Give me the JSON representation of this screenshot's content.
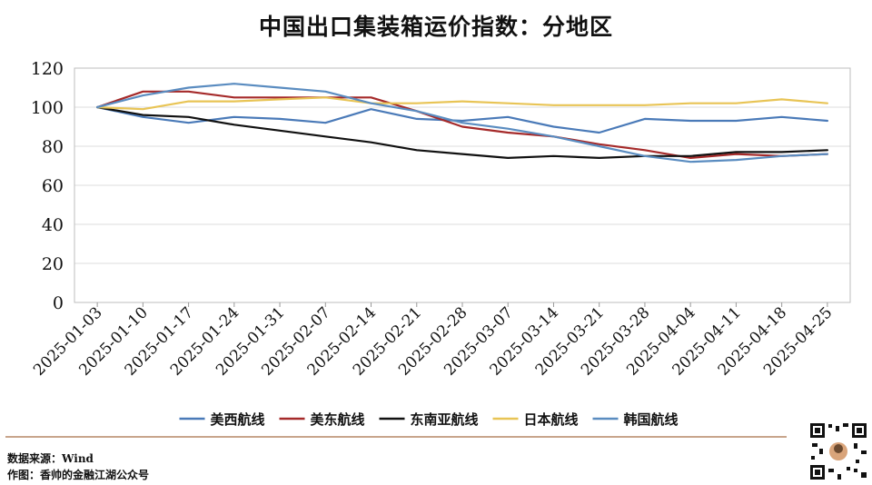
{
  "title": "中国出口集装箱运价指数：分地区",
  "footer": {
    "source": "数据来源：Wind",
    "author": "作图：香帅的金融江湖公众号"
  },
  "chart_data": {
    "type": "line",
    "title": "中国出口集装箱运价指数：分地区",
    "xlabel": "",
    "ylabel": "",
    "ylim": [
      0,
      120
    ],
    "yticks": [
      0,
      20,
      40,
      60,
      80,
      100,
      120
    ],
    "grid": true,
    "legend_position": "bottom",
    "x": [
      "2025-01-03",
      "2025-01-10",
      "2025-01-17",
      "2025-01-24",
      "2025-01-31",
      "2025-02-07",
      "2025-02-14",
      "2025-02-21",
      "2025-02-28",
      "2025-03-07",
      "2025-03-14",
      "2025-03-21",
      "2025-03-28",
      "2025-04-04",
      "2025-04-11",
      "2025-04-18",
      "2025-04-25"
    ],
    "series": [
      {
        "name": "美西航线",
        "color": "#4a7ab8",
        "values": [
          100,
          95,
          92,
          95,
          94,
          92,
          99,
          94,
          93,
          95,
          90,
          87,
          94,
          93,
          93,
          95,
          93
        ]
      },
      {
        "name": "美东航线",
        "color": "#a52a2a",
        "values": [
          100,
          108,
          108,
          105,
          105,
          105,
          105,
          98,
          90,
          87,
          85,
          81,
          78,
          74,
          76,
          75,
          76
        ]
      },
      {
        "name": "东南亚航线",
        "color": "#111111",
        "values": [
          100,
          96,
          95,
          91,
          88,
          85,
          82,
          78,
          76,
          74,
          75,
          74,
          75,
          75,
          77,
          77,
          78
        ]
      },
      {
        "name": "日本航线",
        "color": "#e8c455",
        "values": [
          100,
          99,
          103,
          103,
          104,
          105,
          102,
          102,
          103,
          102,
          101,
          101,
          101,
          102,
          102,
          104,
          102
        ]
      },
      {
        "name": "韩国航线",
        "color": "#5a8cc0",
        "values": [
          100,
          106,
          110,
          112,
          110,
          108,
          102,
          98,
          92,
          89,
          85,
          80,
          75,
          72,
          73,
          75,
          76
        ]
      }
    ]
  }
}
